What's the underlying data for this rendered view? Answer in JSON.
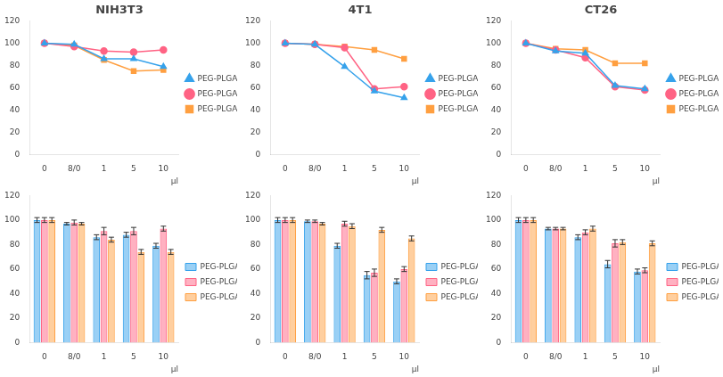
{
  "chart_data": [
    {
      "type": "line",
      "title": "NIH3T3",
      "categories": [
        "0",
        "8/0",
        "1",
        "5",
        "10"
      ],
      "x_label": "μl",
      "series": [
        {
          "name": "PEG-PLGA-Doce",
          "marker": "triangle",
          "line_style": "solid",
          "values": [
            100,
            99,
            86,
            86,
            79
          ]
        },
        {
          "name": "PEG-PLGA-PTX",
          "marker": "circle",
          "line_style": "solid",
          "values": [
            100,
            97,
            93,
            92,
            94
          ]
        },
        {
          "name": "PEG-PLGA-Oxal",
          "marker": "square",
          "line_style": "solid",
          "values": [
            100,
            98,
            85,
            75,
            76
          ]
        }
      ],
      "ylim": [
        0,
        120
      ],
      "yticks": [
        0,
        20,
        40,
        60,
        80,
        100,
        120
      ],
      "grid": false,
      "legend": "right"
    },
    {
      "type": "line",
      "title": "4T1",
      "categories": [
        "0",
        "8/0",
        "1",
        "5",
        "10"
      ],
      "x_label": "μl",
      "series": [
        {
          "name": "PEG-PLGA-Doce",
          "marker": "triangle",
          "line_style": "solid",
          "values": [
            100,
            99,
            79,
            57,
            51
          ]
        },
        {
          "name": "PEG-PLGA-PTX",
          "marker": "circle",
          "line_style": "solid",
          "values": [
            100,
            99,
            96,
            59,
            61
          ]
        },
        {
          "name": "PEG-PLGA-Oxal",
          "marker": "square",
          "line_style": "solid",
          "values": [
            100,
            99,
            97,
            94,
            86
          ]
        }
      ],
      "ylim": [
        0,
        120
      ],
      "yticks": [
        0,
        20,
        40,
        60,
        80,
        100,
        120
      ],
      "grid": false,
      "legend": "right"
    },
    {
      "type": "line",
      "title": "CT26",
      "categories": [
        "0",
        "8/0",
        "1",
        "5",
        "10"
      ],
      "x_label": "μl",
      "series": [
        {
          "name": "PEG-PLGA-Doce",
          "marker": "triangle",
          "line_style": "solid",
          "values": [
            100,
            93,
            91,
            62,
            59
          ]
        },
        {
          "name": "PEG-PLGA-PTX",
          "marker": "circle",
          "line_style": "solid",
          "values": [
            100,
            94,
            87,
            61,
            58
          ]
        },
        {
          "name": "PEG-PLGA-Oxal",
          "marker": "square",
          "line_style": "solid",
          "values": [
            100,
            95,
            94,
            82,
            82
          ]
        }
      ],
      "ylim": [
        0,
        120
      ],
      "yticks": [
        0,
        20,
        40,
        60,
        80,
        100,
        120
      ],
      "grid": false,
      "legend": "right"
    },
    {
      "type": "bar",
      "categories": [
        "0",
        "8/0",
        "1",
        "5",
        "10"
      ],
      "x_label": "μl",
      "series": [
        {
          "name": "PEG-PLGA-Doce",
          "values": [
            100,
            97,
            86,
            88,
            79
          ],
          "errors": [
            2,
            1,
            2,
            2,
            2
          ]
        },
        {
          "name": "PEG-PLGA-PTX",
          "values": [
            100,
            98,
            91,
            91,
            93
          ],
          "errors": [
            2,
            2,
            3,
            3,
            2
          ]
        },
        {
          "name": "PEG-PLGA-Oxal",
          "values": [
            100,
            97,
            84,
            74,
            74
          ],
          "errors": [
            2,
            1,
            2,
            2,
            2
          ]
        }
      ],
      "ylim": [
        0,
        120
      ],
      "yticks": [
        0,
        20,
        40,
        60,
        80,
        100,
        120
      ],
      "grid": false,
      "legend": "right"
    },
    {
      "type": "bar",
      "categories": [
        "0",
        "8/0",
        "1",
        "5",
        "10"
      ],
      "x_label": "μl",
      "series": [
        {
          "name": "PEG-PLGA-Doce",
          "values": [
            100,
            99,
            79,
            55,
            50
          ],
          "errors": [
            2,
            1,
            2,
            3,
            2
          ]
        },
        {
          "name": "PEG-PLGA-PTX",
          "values": [
            100,
            99,
            97,
            57,
            60
          ],
          "errors": [
            2,
            1,
            2,
            3,
            2
          ]
        },
        {
          "name": "PEG-PLGA-Oxal",
          "values": [
            100,
            97,
            95,
            92,
            85
          ],
          "errors": [
            2,
            1,
            2,
            2,
            2
          ]
        }
      ],
      "ylim": [
        0,
        120
      ],
      "yticks": [
        0,
        20,
        40,
        60,
        80,
        100,
        120
      ],
      "grid": false,
      "legend": "right"
    },
    {
      "type": "bar",
      "categories": [
        "0",
        "8/0",
        "1",
        "5",
        "10"
      ],
      "x_label": "μl",
      "series": [
        {
          "name": "PEG-PLGA-Doce",
          "values": [
            100,
            93,
            86,
            64,
            58
          ],
          "errors": [
            2,
            1,
            2,
            3,
            2
          ]
        },
        {
          "name": "PEG-PLGA-PTX",
          "values": [
            100,
            93,
            90,
            81,
            59
          ],
          "errors": [
            2,
            1,
            2,
            3,
            2
          ]
        },
        {
          "name": "PEG-PLGA-Oxal",
          "values": [
            100,
            93,
            93,
            82,
            81
          ],
          "errors": [
            2,
            1,
            2,
            2,
            2
          ]
        }
      ],
      "ylim": [
        0,
        120
      ],
      "yticks": [
        0,
        20,
        40,
        60,
        80,
        100,
        120
      ],
      "grid": false,
      "legend": "right"
    }
  ]
}
